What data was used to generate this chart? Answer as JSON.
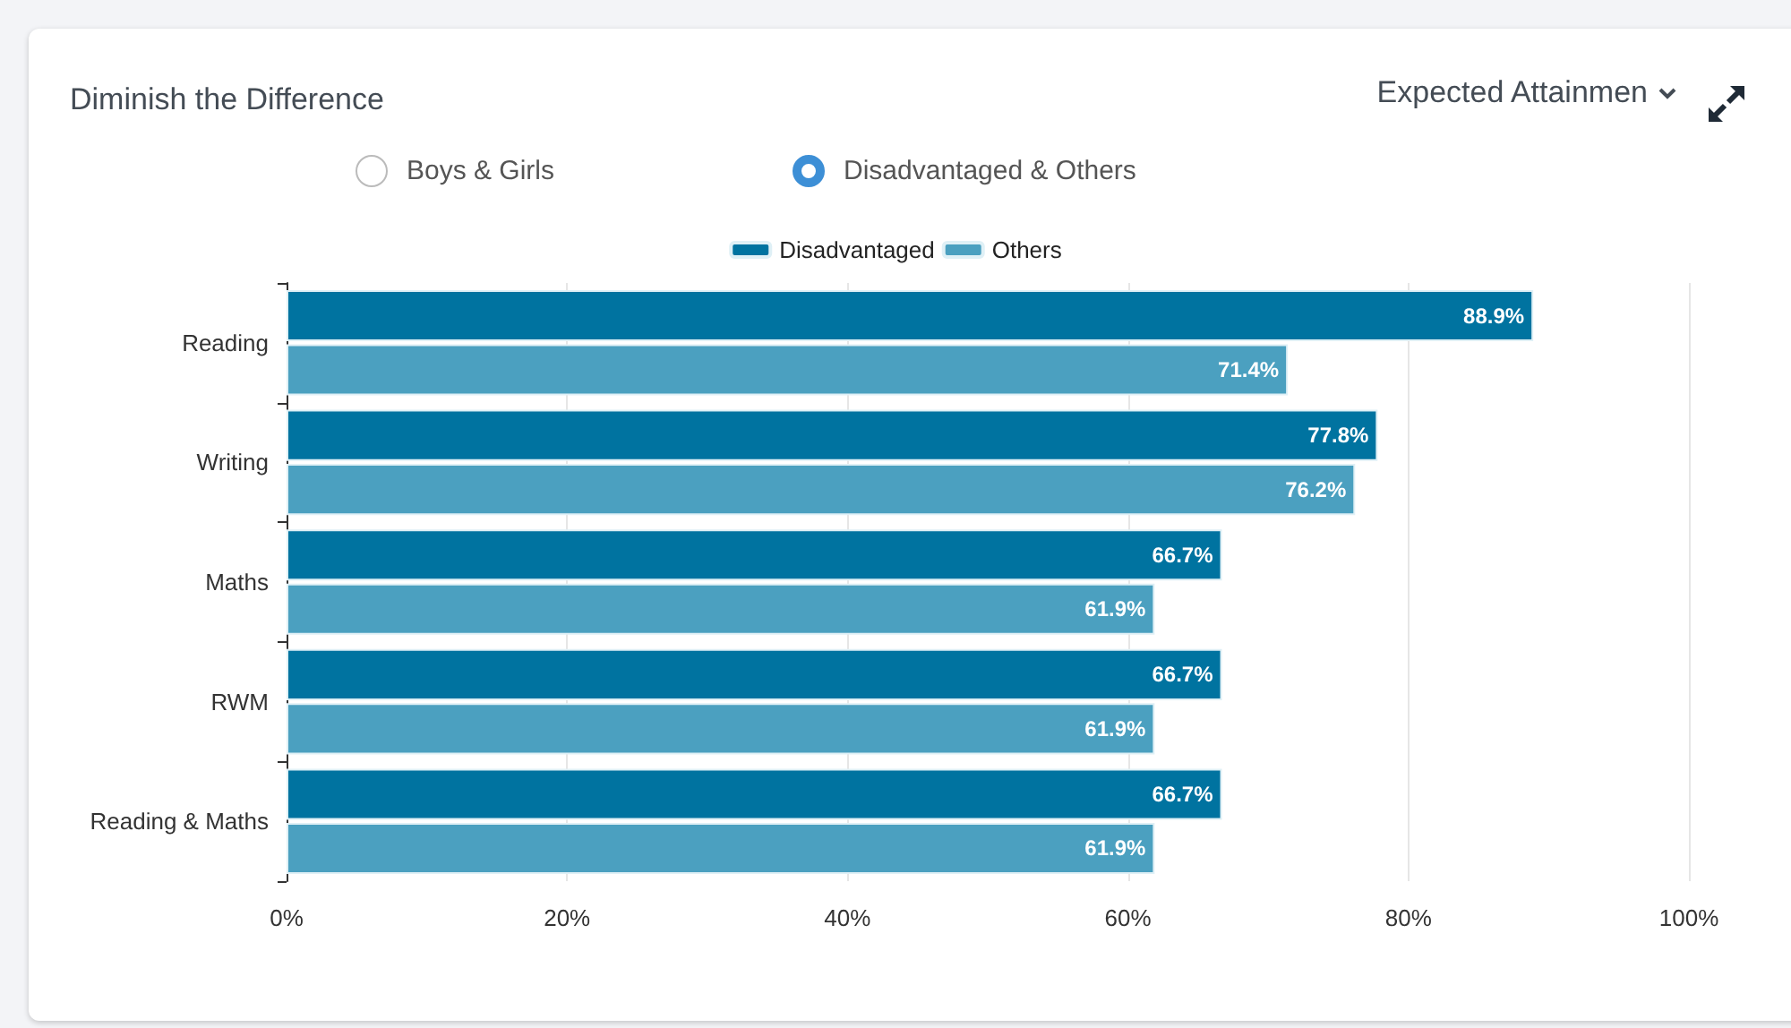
{
  "chart_data": {
    "type": "bar",
    "orientation": "horizontal",
    "title": "Diminish the Difference",
    "annotations": [
      "Expected Attainmen",
      "Boys & Girls",
      "Disadvantaged & Others"
    ],
    "categories": [
      "Reading",
      "Writing",
      "Maths",
      "RWM",
      "Reading & Maths"
    ],
    "series": [
      {
        "name": "Disadvantaged",
        "color": "#0073a0",
        "values": [
          88.9,
          77.8,
          66.7,
          66.7,
          66.7
        ],
        "value_labels": [
          "88.9%",
          "77.8%",
          "66.7%",
          "66.7%",
          "66.7%"
        ]
      },
      {
        "name": "Others",
        "color": "#4ba0c0",
        "values": [
          71.4,
          76.2,
          61.9,
          61.9,
          61.9
        ],
        "value_labels": [
          "71.4%",
          "76.2%",
          "61.9%",
          "61.9%",
          "61.9%"
        ]
      }
    ],
    "xlim": [
      0,
      100
    ],
    "xticks": [
      {
        "value": 0,
        "label": "0%"
      },
      {
        "value": 20,
        "label": "20%"
      },
      {
        "value": 40,
        "label": "40%"
      },
      {
        "value": 60,
        "label": "60%"
      },
      {
        "value": 80,
        "label": "80%"
      },
      {
        "value": 100,
        "label": "100%"
      }
    ],
    "grid": "x",
    "legend": "top"
  }
}
